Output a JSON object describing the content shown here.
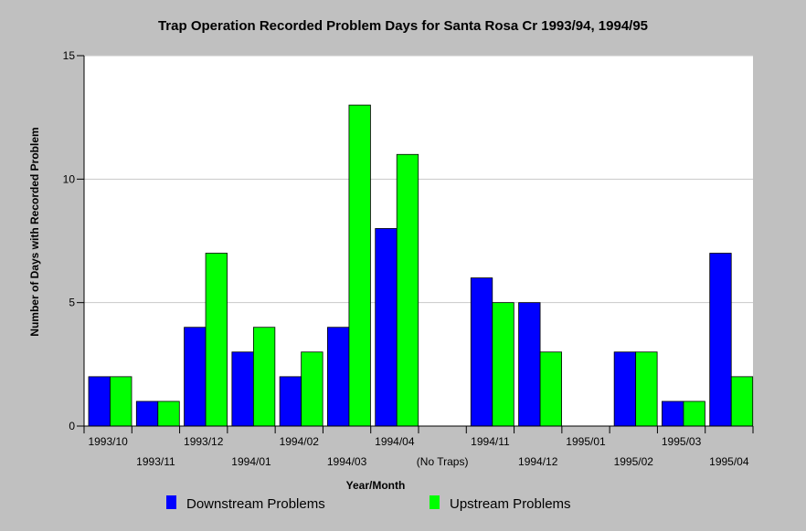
{
  "chart_data": {
    "type": "bar",
    "title": "Trap Operation Recorded Problem Days for Santa Rosa Cr 1993/94, 1994/95",
    "xlabel": "Year/Month",
    "ylabel": "Number of Days with Recorded Problem",
    "ylim": [
      0,
      15
    ],
    "yticks": [
      0,
      5,
      10,
      15
    ],
    "grid": true,
    "legend_position": "bottom",
    "categories": [
      "1993/10",
      "1993/11",
      "1993/12",
      "1994/01",
      "1994/02",
      "1994/03",
      "1994/04",
      "(No Traps)",
      "1994/11",
      "1994/12",
      "1995/01",
      "1995/02",
      "1995/03",
      "1995/04"
    ],
    "series": [
      {
        "name": "Downstream Problems",
        "color": "#0000ff",
        "values": [
          2,
          1,
          4,
          3,
          2,
          4,
          8,
          0,
          6,
          5,
          0,
          3,
          1,
          7
        ]
      },
      {
        "name": "Upstream Problems",
        "color": "#00ff00",
        "values": [
          2,
          1,
          7,
          4,
          3,
          13,
          11,
          0,
          5,
          3,
          0,
          3,
          1,
          2
        ]
      }
    ]
  }
}
